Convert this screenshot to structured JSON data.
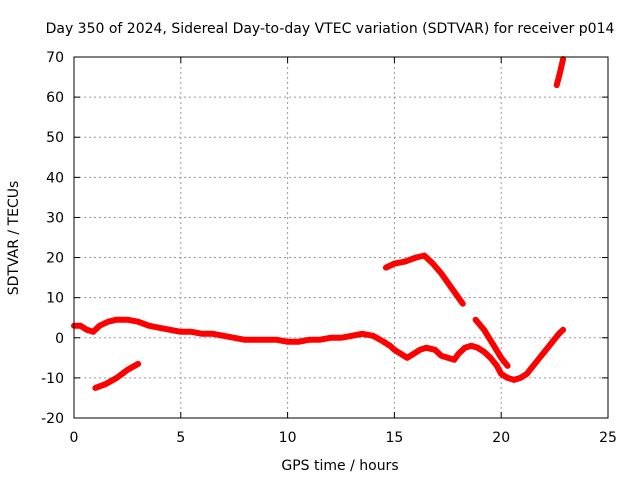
{
  "chart_data": {
    "type": "line",
    "title": "Day 350 of 2024, Sidereal Day-to-day VTEC variation (SDTVAR) for receiver p014",
    "xlabel": "GPS time / hours",
    "ylabel": "SDTVAR / TECUs",
    "xlim": [
      0,
      25
    ],
    "ylim": [
      -20,
      70
    ],
    "xticks": [
      0,
      5,
      10,
      15,
      20,
      25
    ],
    "yticks": [
      -20,
      -10,
      0,
      10,
      20,
      30,
      40,
      50,
      60,
      70
    ],
    "grid": true,
    "series_color": "#ff0000",
    "series": [
      {
        "name": "main-trace",
        "x": [
          0.0,
          0.3,
          0.6,
          0.9,
          1.2,
          1.6,
          2.0,
          2.5,
          3.0,
          3.5,
          4.0,
          4.5,
          5.0,
          5.5,
          6.0,
          6.5,
          7.0,
          7.5,
          8.0,
          8.5,
          9.0,
          9.5,
          10.0,
          10.5,
          11.0,
          11.5,
          12.0,
          12.5,
          13.0,
          13.5,
          14.0,
          14.5,
          14.8,
          15.0,
          15.3,
          15.6,
          15.9,
          16.2,
          16.5,
          16.9,
          17.2,
          17.5,
          17.8,
          18.0,
          18.3,
          18.6,
          18.9,
          19.2,
          19.5,
          19.8,
          20.0,
          20.3,
          20.6,
          20.9,
          21.2,
          21.5,
          21.8,
          22.1,
          22.4,
          22.7,
          22.9
        ],
        "y": [
          3,
          3,
          2,
          1.5,
          3,
          4,
          4.5,
          4.5,
          4,
          3,
          2.5,
          2,
          1.5,
          1.5,
          1,
          1,
          0.5,
          0,
          -0.5,
          -0.5,
          -0.5,
          -0.5,
          -1,
          -1,
          -0.5,
          -0.5,
          0,
          0,
          0.5,
          1,
          0.5,
          -1,
          -2,
          -3,
          -4,
          -5,
          -4,
          -3,
          -2.5,
          -3,
          -4.5,
          -5,
          -5.5,
          -4,
          -2.5,
          -2,
          -2.5,
          -3.5,
          -5,
          -7,
          -9,
          -10,
          -10.5,
          -10,
          -9,
          -7,
          -5,
          -3,
          -1,
          1,
          2
        ]
      },
      {
        "name": "short-rising-segment",
        "x": [
          1.0,
          1.5,
          2.0,
          2.5,
          3.0
        ],
        "y": [
          -12.5,
          -11.5,
          -10,
          -8,
          -6.5
        ]
      },
      {
        "name": "upper-arc-segment",
        "x": [
          14.6,
          15.0,
          15.5,
          16.0,
          16.4,
          16.8,
          17.2,
          17.6,
          18.0,
          18.2
        ],
        "y": [
          17.5,
          18.5,
          19,
          20,
          20.5,
          18.5,
          16,
          13,
          10,
          8.5
        ]
      },
      {
        "name": "descending-segment",
        "x": [
          18.8,
          19.2,
          19.6,
          20.0,
          20.3
        ],
        "y": [
          4.5,
          2,
          -1.5,
          -5,
          -7
        ]
      },
      {
        "name": "top-right-segment",
        "x": [
          22.6,
          22.75,
          22.9
        ],
        "y": [
          63,
          66,
          69.5
        ]
      }
    ]
  }
}
